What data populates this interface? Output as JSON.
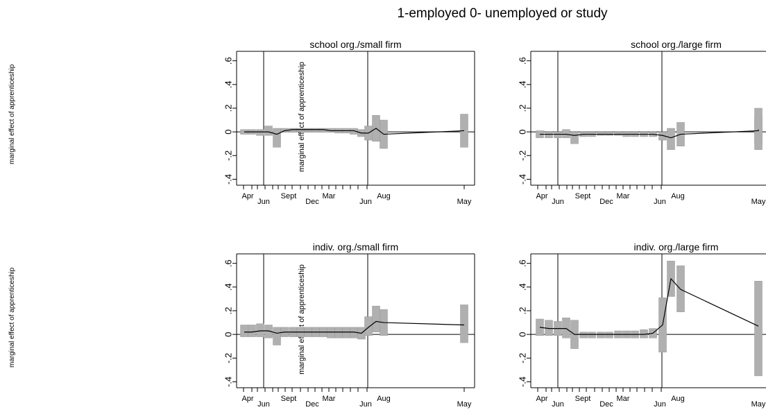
{
  "page": {
    "title": "1-employed 0- unemployed or study",
    "outer_ylabel": "marginal effect of apprenticeship"
  },
  "chart_data": [
    {
      "type": "bar",
      "title": "school org./small firm",
      "ylabel": "marginal effect of apprenticeship",
      "ylim": [
        -0.45,
        0.68
      ],
      "yticks": [
        ".6",
        ".4",
        ".2",
        "0",
        "-.2",
        "-.4"
      ],
      "xticks_top": [
        "Apr",
        "Sept",
        "Mar",
        "Aug"
      ],
      "xticks_bottom": [
        "Jun",
        "Dec",
        "Jun",
        "May"
      ],
      "vlines": [
        "Jun",
        "Jun"
      ],
      "ci": [
        {
          "lo": -0.02,
          "hi": 0.02
        },
        {
          "lo": -0.02,
          "hi": 0.02
        },
        {
          "lo": -0.03,
          "hi": 0.02
        },
        {
          "lo": -0.03,
          "hi": 0.05
        },
        {
          "lo": -0.13,
          "hi": 0.03
        },
        {
          "lo": 0.0,
          "hi": 0.03
        },
        {
          "lo": 0.0,
          "hi": 0.03
        },
        {
          "lo": 0.0,
          "hi": 0.03
        },
        {
          "lo": 0.0,
          "hi": 0.03
        },
        {
          "lo": 0.0,
          "hi": 0.03
        },
        {
          "lo": 0.0,
          "hi": 0.03
        },
        {
          "lo": 0.0,
          "hi": 0.03
        },
        {
          "lo": -0.01,
          "hi": 0.03
        },
        {
          "lo": -0.01,
          "hi": 0.03
        },
        {
          "lo": -0.02,
          "hi": 0.03
        },
        {
          "lo": -0.04,
          "hi": 0.02
        },
        {
          "lo": -0.07,
          "hi": 0.05
        },
        {
          "lo": -0.08,
          "hi": 0.14
        },
        {
          "lo": -0.14,
          "hi": 0.1
        },
        {
          "lo": -0.13,
          "hi": 0.15
        }
      ],
      "line": [
        0.0,
        0.0,
        0.0,
        0.0,
        -0.02,
        0.01,
        0.02,
        0.02,
        0.02,
        0.02,
        0.02,
        0.01,
        0.01,
        0.01,
        0.01,
        -0.01,
        -0.01,
        0.03,
        -0.02,
        0.01
      ]
    },
    {
      "type": "bar",
      "title": "school org./large firm",
      "ylabel": "",
      "ylim": [
        -0.45,
        0.68
      ],
      "yticks": [
        ".6",
        ".4",
        ".2",
        "0",
        "-.2",
        "-.4"
      ],
      "xticks_top": [
        "Apr",
        "Sept",
        "Mar",
        "Aug"
      ],
      "xticks_bottom": [
        "Jun",
        "Dec",
        "Jun",
        "May"
      ],
      "vlines": [
        "Jun",
        "Jun"
      ],
      "ci": [
        {
          "lo": -0.05,
          "hi": 0.01
        },
        {
          "lo": -0.05,
          "hi": 0.0
        },
        {
          "lo": -0.05,
          "hi": 0.0
        },
        {
          "lo": -0.05,
          "hi": 0.02
        },
        {
          "lo": -0.1,
          "hi": 0.0
        },
        {
          "lo": -0.04,
          "hi": 0.0
        },
        {
          "lo": -0.04,
          "hi": 0.0
        },
        {
          "lo": -0.03,
          "hi": 0.0
        },
        {
          "lo": -0.03,
          "hi": 0.0
        },
        {
          "lo": -0.03,
          "hi": 0.0
        },
        {
          "lo": -0.04,
          "hi": 0.0
        },
        {
          "lo": -0.04,
          "hi": 0.0
        },
        {
          "lo": -0.04,
          "hi": 0.0
        },
        {
          "lo": -0.04,
          "hi": 0.0
        },
        {
          "lo": -0.07,
          "hi": 0.0
        },
        {
          "lo": -0.15,
          "hi": 0.03
        },
        {
          "lo": -0.12,
          "hi": 0.08
        },
        {
          "lo": -0.1,
          "hi": 0.12
        },
        {
          "lo": -0.15,
          "hi": 0.2
        }
      ],
      "line": [
        -0.02,
        -0.02,
        -0.02,
        -0.02,
        -0.03,
        -0.02,
        -0.02,
        -0.02,
        -0.02,
        -0.02,
        -0.02,
        -0.02,
        -0.02,
        -0.02,
        -0.03,
        -0.05,
        -0.02,
        0.01,
        0.02
      ]
    },
    {
      "type": "bar",
      "title": "indiv. org./small firm",
      "ylabel": "marginal effect of apprenticeship",
      "ylim": [
        -0.45,
        0.68
      ],
      "yticks": [
        ".6",
        ".4",
        ".2",
        "0",
        "-.2",
        "-.4"
      ],
      "xticks_top": [
        "Apr",
        "Sept",
        "Mar",
        "Aug"
      ],
      "xticks_bottom": [
        "Jun",
        "Dec",
        "Jun",
        "May"
      ],
      "vlines": [
        "Jun",
        "Jun"
      ],
      "ci": [
        {
          "lo": -0.02,
          "hi": 0.08
        },
        {
          "lo": -0.02,
          "hi": 0.08
        },
        {
          "lo": -0.02,
          "hi": 0.09
        },
        {
          "lo": -0.03,
          "hi": 0.08
        },
        {
          "lo": -0.09,
          "hi": 0.06
        },
        {
          "lo": -0.02,
          "hi": 0.06
        },
        {
          "lo": -0.02,
          "hi": 0.06
        },
        {
          "lo": -0.02,
          "hi": 0.06
        },
        {
          "lo": -0.02,
          "hi": 0.06
        },
        {
          "lo": -0.02,
          "hi": 0.06
        },
        {
          "lo": -0.02,
          "hi": 0.06
        },
        {
          "lo": -0.03,
          "hi": 0.06
        },
        {
          "lo": -0.03,
          "hi": 0.06
        },
        {
          "lo": -0.03,
          "hi": 0.06
        },
        {
          "lo": -0.03,
          "hi": 0.06
        },
        {
          "lo": -0.04,
          "hi": 0.06
        },
        {
          "lo": -0.01,
          "hi": 0.15
        },
        {
          "lo": 0.02,
          "hi": 0.24
        },
        {
          "lo": -0.01,
          "hi": 0.21
        },
        {
          "lo": -0.07,
          "hi": 0.25
        }
      ],
      "line": [
        0.02,
        0.02,
        0.03,
        0.03,
        0.01,
        0.02,
        0.02,
        0.02,
        0.02,
        0.02,
        0.02,
        0.02,
        0.02,
        0.02,
        0.02,
        0.01,
        0.06,
        0.11,
        0.1,
        0.08
      ]
    },
    {
      "type": "bar",
      "title": "indiv. org./large firm",
      "ylabel": "",
      "ylim": [
        -0.45,
        0.68
      ],
      "yticks": [
        ".6",
        ".4",
        ".2",
        "0",
        "-.2",
        "-.4"
      ],
      "xticks_top": [
        "Apr",
        "Sept",
        "Mar",
        "Aug"
      ],
      "xticks_bottom": [
        "Jun",
        "Dec",
        "Jun",
        "May"
      ],
      "vlines": [
        "Jun",
        "Jun"
      ],
      "ci": [
        {
          "lo": -0.01,
          "hi": 0.13
        },
        {
          "lo": -0.01,
          "hi": 0.12
        },
        {
          "lo": -0.01,
          "hi": 0.11
        },
        {
          "lo": -0.03,
          "hi": 0.14
        },
        {
          "lo": -0.12,
          "hi": 0.12
        },
        {
          "lo": -0.03,
          "hi": 0.02
        },
        {
          "lo": -0.03,
          "hi": 0.02
        },
        {
          "lo": -0.03,
          "hi": 0.02
        },
        {
          "lo": -0.03,
          "hi": 0.02
        },
        {
          "lo": -0.03,
          "hi": 0.03
        },
        {
          "lo": -0.03,
          "hi": 0.03
        },
        {
          "lo": -0.03,
          "hi": 0.03
        },
        {
          "lo": -0.03,
          "hi": 0.04
        },
        {
          "lo": -0.03,
          "hi": 0.05
        },
        {
          "lo": -0.15,
          "hi": 0.31
        },
        {
          "lo": 0.32,
          "hi": 0.62
        },
        {
          "lo": 0.19,
          "hi": 0.58
        },
        {
          "lo": -0.35,
          "hi": 0.45
        }
      ],
      "line": [
        0.06,
        0.05,
        0.05,
        0.05,
        0.0,
        0.0,
        0.0,
        0.0,
        0.0,
        0.0,
        0.0,
        0.0,
        0.0,
        0.01,
        0.08,
        0.47,
        0.38,
        0.07
      ]
    }
  ]
}
